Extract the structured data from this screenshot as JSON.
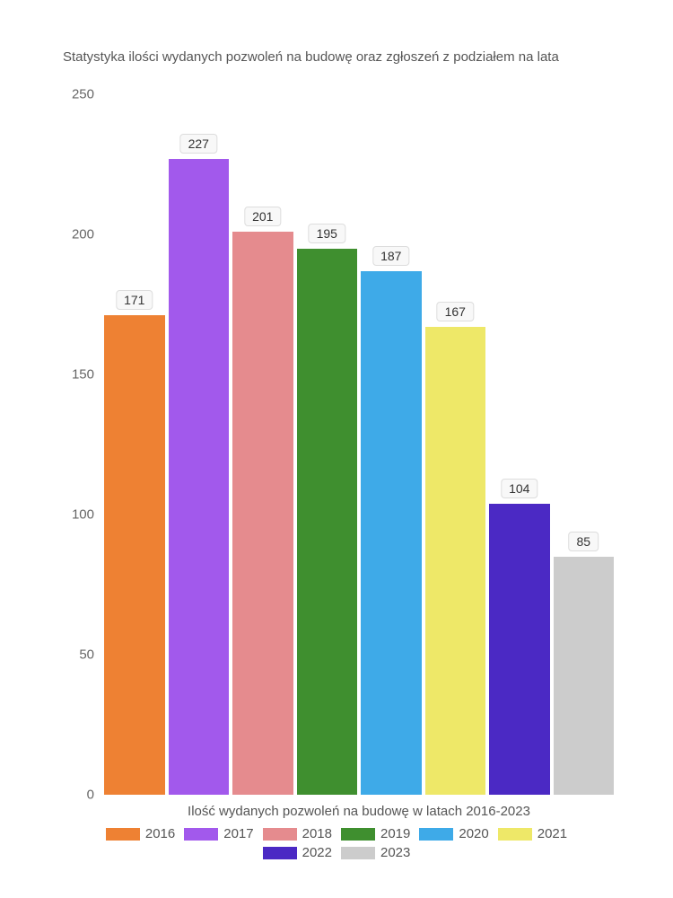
{
  "chart": {
    "type": "bar",
    "title": "Statystyka ilości wydanych pozwoleń na budowę oraz zgłoszeń z podziałem na lata",
    "title_fontsize": 15,
    "title_color": "#555555",
    "xlabel": "Ilość wydanych pozwoleń na budowę w latach 2016-2023",
    "label_fontsize": 15,
    "label_color": "#555555",
    "background_color": "#ffffff",
    "ylim": [
      0,
      250
    ],
    "ytick_step": 50,
    "yticks": [
      0,
      50,
      100,
      150,
      200,
      250
    ],
    "categories": [
      "2016",
      "2017",
      "2018",
      "2019",
      "2020",
      "2021",
      "2022",
      "2023"
    ],
    "values": [
      171,
      227,
      201,
      195,
      187,
      167,
      104,
      85
    ],
    "bar_colors": [
      "#ee8133",
      "#a259ec",
      "#e58b8e",
      "#3f8f2f",
      "#3eaae8",
      "#eee868",
      "#4b29c4",
      "#cccccc"
    ],
    "value_label_bg": "#f8f8f8",
    "value_label_border": "#dddddd",
    "value_label_fontsize": 14,
    "tick_fontsize": 15,
    "tick_color": "#666666",
    "bar_width": 0.9
  }
}
